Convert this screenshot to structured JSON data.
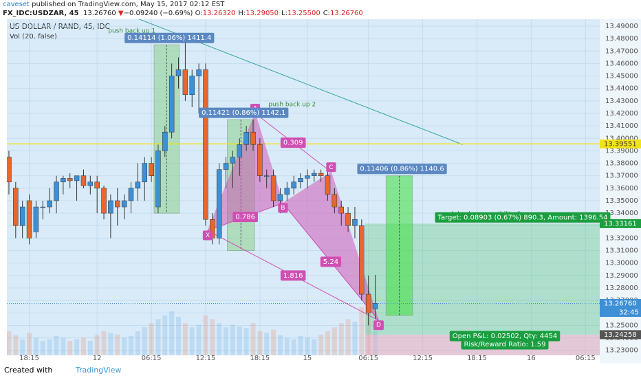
{
  "header": {
    "author": "caveset",
    "published": "published on TradingView.com, May 15, 2017 02:12 EST",
    "symbol": "FX_IDC:USDZAR, 45",
    "last": "13.26760",
    "arrow": "▼",
    "change": "−0.09240 (−0.69%)",
    "ohlc": [
      {
        "k": "O:",
        "v": "13.26320"
      },
      {
        "k": "H:",
        "v": "13.29050"
      },
      {
        "k": "L:",
        "v": "13.25500"
      },
      {
        "k": "C:",
        "v": "13.26760"
      }
    ]
  },
  "footer": {
    "created": "Created with",
    "brand": "TradingView"
  },
  "chart_data": {
    "type": "candlestick",
    "title": "US DOLLAR / RAND, 45, IDC",
    "subtitle": "Vol (20, false)",
    "up_color": "#3d8fd6",
    "down_color": "#e8662f",
    "grid": true,
    "xlim": [
      -0.3,
      87.1
    ],
    "ylim": [
      13.226,
      13.4955
    ],
    "xticks": [
      {
        "value": 3,
        "label": "18:15"
      },
      {
        "value": 13,
        "label": "12"
      },
      {
        "value": 21,
        "label": "06:15"
      },
      {
        "value": 29,
        "label": "12:15"
      },
      {
        "value": 37,
        "label": "18:15"
      },
      {
        "value": 44,
        "label": "15"
      },
      {
        "value": 53,
        "label": "06:15"
      },
      {
        "value": 61,
        "label": "12:15"
      },
      {
        "value": 69,
        "label": "18:15"
      },
      {
        "value": 77,
        "label": "16"
      },
      {
        "value": 85,
        "label": "06:15"
      }
    ],
    "yticks": [
      {
        "value": 13.23,
        "label": "13.23000"
      },
      {
        "value": 13.24,
        "label": "13.24000"
      },
      {
        "value": 13.25,
        "label": "13.25000"
      },
      {
        "value": 13.26,
        "label": "13.26000"
      },
      {
        "value": 13.27,
        "label": "13.27000"
      },
      {
        "value": 13.28,
        "label": "13.28000"
      },
      {
        "value": 13.29,
        "label": "13.29000"
      },
      {
        "value": 13.3,
        "label": "13.30000"
      },
      {
        "value": 13.31,
        "label": "13.31000"
      },
      {
        "value": 13.32,
        "label": "13.32000"
      },
      {
        "value": 13.33,
        "label": "13.33000"
      },
      {
        "value": 13.34,
        "label": "13.34000"
      },
      {
        "value": 13.35,
        "label": "13.35000"
      },
      {
        "value": 13.36,
        "label": "13.36000"
      },
      {
        "value": 13.37,
        "label": "13.37000"
      },
      {
        "value": 13.38,
        "label": "13.38000"
      },
      {
        "value": 13.39,
        "label": "13.39000"
      },
      {
        "value": 13.4,
        "label": "13.40000"
      },
      {
        "value": 13.41,
        "label": "13.41000"
      },
      {
        "value": 13.42,
        "label": "13.42000"
      },
      {
        "value": 13.43,
        "label": "13.43000"
      },
      {
        "value": 13.44,
        "label": "13.44000"
      },
      {
        "value": 13.45,
        "label": "13.45000"
      },
      {
        "value": 13.46,
        "label": "13.46000"
      },
      {
        "value": 13.47,
        "label": "13.47000"
      },
      {
        "value": 13.48,
        "label": "13.48000"
      },
      {
        "value": 13.49,
        "label": "13.49000"
      }
    ],
    "open": [
      13.385,
      13.36,
      13.33,
      13.35,
      13.325,
      13.345,
      13.345,
      13.35,
      13.365,
      13.368,
      13.366,
      13.37,
      13.362,
      13.365,
      13.36,
      13.34,
      13.35,
      13.345,
      13.35,
      13.36,
      13.365,
      13.38,
      13.345,
      13.39,
      13.405,
      13.45,
      13.455,
      13.435,
      13.45,
      13.455,
      13.335,
      13.32,
      13.375,
      13.38,
      13.385,
      13.395,
      13.405,
      13.395,
      13.37,
      13.37,
      13.35,
      13.355,
      13.36,
      13.365,
      13.368,
      13.37,
      13.372,
      13.37,
      13.355,
      13.345,
      13.34,
      13.33,
      13.33,
      13.275,
      13.2632
    ],
    "high": [
      13.39,
      13.365,
      13.35,
      13.355,
      13.35,
      13.35,
      13.36,
      13.37,
      13.37,
      13.372,
      13.37,
      13.375,
      13.37,
      13.37,
      13.362,
      13.355,
      13.36,
      13.355,
      13.365,
      13.38,
      13.385,
      13.385,
      13.395,
      13.41,
      13.46,
      13.465,
      13.48,
      13.455,
      13.46,
      13.46,
      13.34,
      13.38,
      13.385,
      13.39,
      13.4,
      13.41,
      13.415,
      13.4,
      13.375,
      13.375,
      13.36,
      13.365,
      13.37,
      13.372,
      13.375,
      13.375,
      13.375,
      13.375,
      13.36,
      13.35,
      13.345,
      13.345,
      13.335,
      13.29,
      13.2905
    ],
    "low": [
      13.355,
      13.32,
      13.32,
      13.315,
      13.32,
      13.335,
      13.34,
      13.34,
      13.355,
      13.36,
      13.35,
      13.36,
      13.355,
      13.34,
      13.335,
      13.32,
      13.33,
      13.335,
      13.34,
      13.35,
      13.35,
      13.365,
      13.34,
      13.385,
      13.4,
      13.44,
      13.43,
      13.425,
      13.42,
      13.33,
      13.315,
      13.315,
      13.36,
      13.36,
      13.37,
      13.39,
      13.39,
      13.365,
      13.36,
      13.345,
      13.34,
      13.35,
      13.355,
      13.36,
      13.36,
      13.365,
      13.365,
      13.35,
      13.34,
      13.33,
      13.325,
      13.32,
      13.27,
      13.25,
      13.255
    ],
    "close": [
      13.365,
      13.33,
      13.345,
      13.32,
      13.345,
      13.345,
      13.35,
      13.365,
      13.368,
      13.366,
      13.37,
      13.362,
      13.365,
      13.36,
      13.34,
      13.35,
      13.345,
      13.35,
      13.36,
      13.365,
      13.38,
      13.37,
      13.39,
      13.405,
      13.45,
      13.455,
      13.435,
      13.45,
      13.455,
      13.335,
      13.32,
      13.375,
      13.38,
      13.385,
      13.395,
      13.405,
      13.395,
      13.37,
      13.37,
      13.35,
      13.355,
      13.36,
      13.365,
      13.368,
      13.37,
      13.372,
      13.37,
      13.355,
      13.345,
      13.34,
      13.33,
      13.335,
      13.275,
      13.26,
      13.2676
    ],
    "volume": [
      30,
      25,
      20,
      28,
      22,
      18,
      20,
      24,
      22,
      18,
      20,
      22,
      18,
      25,
      30,
      28,
      26,
      22,
      24,
      30,
      35,
      40,
      45,
      50,
      55,
      48,
      40,
      35,
      38,
      50,
      45,
      40,
      35,
      38,
      36,
      34,
      40,
      30,
      28,
      32,
      25,
      22,
      20,
      24,
      22,
      20,
      26,
      30,
      35,
      40,
      45,
      42,
      60,
      55,
      30
    ],
    "trendline": {
      "i": [
        17.1,
        66.9
      ],
      "p": [
        13.5,
        13.395
      ]
    },
    "boxes": [
      {
        "i": [
          21.4,
          25.1
        ],
        "p": [
          13.475,
          13.34
        ],
        "color": "#8fd18f",
        "label": "0.14114 (1.06%) 1411.4",
        "note": "push back up 1"
      },
      {
        "i": [
          32.2,
          36.2
        ],
        "p": [
          13.415,
          13.31
        ],
        "color": "#8fd18f",
        "label": "0.11421 (0.86%) 1142.1",
        "note": "push back up 2"
      },
      {
        "i": [
          55.6,
          59.5
        ],
        "p": [
          13.37,
          13.258
        ],
        "color": "#3ee03e",
        "label": "0.11406 (0.86%) 1140.6",
        "note": "push back up possibility 3"
      }
    ],
    "pattern": {
      "color": "#d14fb3",
      "points": [
        {
          "label": "X",
          "i": 29.3,
          "p": 13.326
        },
        {
          "label": "A",
          "i": 36.3,
          "p": 13.42
        },
        {
          "label": "B",
          "i": 40.4,
          "p": 13.348
        },
        {
          "label": "C",
          "i": 47.5,
          "p": 13.373
        },
        {
          "label": "D",
          "i": 54.5,
          "p": 13.254
        }
      ],
      "ratios": [
        "0.786",
        "0.309",
        "1.816",
        "5.24"
      ]
    },
    "hline": {
      "value": 13.39551,
      "label": "13.39551",
      "color": "#f2e21a"
    },
    "position": {
      "i": 52.5,
      "target": {
        "value": 13.33161,
        "label": "13.33161"
      },
      "entry": {
        "value": 13.24258,
        "label": "13.24258"
      },
      "target_text": "Target: 0.08903 (0.67%) 890.3, Amount: 1396.54",
      "pnl_text": "Open P&L: 0.02502, Qty: 4454",
      "rr_text": "Risk/Reward Ratio: 1.59"
    },
    "last_price": {
      "value": 13.2676,
      "label": "13.26760",
      "countdown": "32:45"
    }
  }
}
